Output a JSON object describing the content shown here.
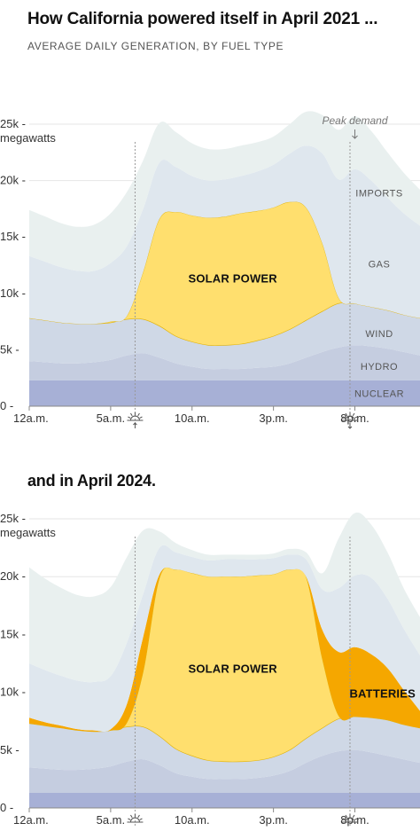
{
  "title_1": "How California powered itself in April 2021 ...",
  "subtitle": "AVERAGE DAILY GENERATION, BY FUEL TYPE",
  "title_2": "and in April 2024.",
  "colors": {
    "nuclear": "#a7b0d6",
    "hydro": "#c5cde0",
    "wind": "#cfd8e6",
    "solar": "#ffdf6e",
    "batteries": "#f5a700",
    "gas": "#dfe7ee",
    "imports": "#e9f0ef"
  },
  "chart_data": [
    {
      "type": "area",
      "stacked": true,
      "title": "How California powered itself in April 2021 ...",
      "subtitle": "AVERAGE DAILY GENERATION, BY FUEL TYPE",
      "ylabel": "megawatts",
      "ylim": [
        0,
        25000
      ],
      "y_ticks": [
        "0",
        "5k",
        "10k",
        "15k",
        "20k",
        "25k"
      ],
      "y_tick_values": [
        0,
        5000,
        10000,
        15000,
        20000,
        25000
      ],
      "x_ticks": [
        "12a.m.",
        "5a.m.",
        "10a.m.",
        "3p.m.",
        "8p.m."
      ],
      "x_tick_hours": [
        0,
        5,
        10,
        15,
        20
      ],
      "sunrise_hour": 6.5,
      "sunset_hour": 19.7,
      "peak_demand_label": "Peak demand",
      "peak_demand_hour": 20,
      "x": [
        0,
        1,
        2,
        3,
        4,
        5,
        6,
        7,
        8,
        9,
        10,
        11,
        12,
        13,
        14,
        15,
        16,
        17,
        18,
        19,
        20,
        21,
        22,
        23,
        24
      ],
      "series": [
        {
          "name": "NUCLEAR",
          "key": "nuclear",
          "values": [
            2300,
            2300,
            2300,
            2300,
            2300,
            2300,
            2300,
            2300,
            2300,
            2300,
            2300,
            2300,
            2300,
            2300,
            2300,
            2300,
            2300,
            2300,
            2300,
            2300,
            2300,
            2300,
            2300,
            2300,
            2300
          ]
        },
        {
          "name": "HYDRO",
          "key": "hydro",
          "values": [
            1700,
            1600,
            1500,
            1500,
            1600,
            1800,
            2200,
            2400,
            2000,
            1500,
            1200,
            1000,
            1000,
            1000,
            1100,
            1200,
            1500,
            2000,
            2500,
            2900,
            3100,
            3000,
            2800,
            2500,
            2200
          ]
        },
        {
          "name": "WIND",
          "key": "wind",
          "values": [
            3800,
            3700,
            3600,
            3500,
            3400,
            3300,
            3200,
            3000,
            2800,
            2400,
            2200,
            2100,
            2100,
            2200,
            2400,
            2700,
            3000,
            3300,
            3600,
            3900,
            3700,
            3500,
            3400,
            3300,
            3300
          ]
        },
        {
          "name": "SOLAR POWER",
          "key": "solar",
          "values": [
            0,
            0,
            0,
            0,
            0,
            100,
            300,
            4200,
            9500,
            11000,
            11200,
            11300,
            11400,
            11600,
            11500,
            11400,
            11300,
            10000,
            6000,
            500,
            0,
            0,
            0,
            0,
            0
          ]
        },
        {
          "name": "GAS",
          "key": "gas",
          "values": [
            5500,
            5200,
            4900,
            4700,
            4700,
            5200,
            6200,
            5600,
            5000,
            4000,
            3500,
            3300,
            3300,
            3300,
            3500,
            3800,
            4300,
            5500,
            8000,
            10500,
            11900,
            11200,
            10000,
            9000,
            8200
          ]
        },
        {
          "name": "IMPORTS",
          "key": "imports",
          "values": [
            4100,
            4000,
            3900,
            3900,
            4100,
            4400,
            4800,
            4300,
            3500,
            3100,
            2900,
            2800,
            2700,
            2700,
            2600,
            2500,
            2600,
            3000,
            3400,
            4400,
            4700,
            4400,
            4000,
            3600,
            3200
          ]
        }
      ],
      "labels": [
        {
          "text": "SOLAR POWER",
          "key": "solar"
        },
        {
          "text": "IMPORTS",
          "key": "imports"
        },
        {
          "text": "GAS",
          "key": "gas"
        },
        {
          "text": "WIND",
          "key": "wind"
        },
        {
          "text": "HYDRO",
          "key": "hydro"
        },
        {
          "text": "NUCLEAR",
          "key": "nuclear"
        }
      ]
    },
    {
      "type": "area",
      "stacked": true,
      "title": "and in April 2024.",
      "ylabel": "megawatts",
      "ylim": [
        0,
        25000
      ],
      "y_ticks": [
        "0",
        "5k",
        "10k",
        "15k",
        "20k",
        "25k"
      ],
      "y_tick_values": [
        0,
        5000,
        10000,
        15000,
        20000,
        25000
      ],
      "x_ticks": [
        "12a.m.",
        "5a.m.",
        "10a.m.",
        "3p.m.",
        "8p.m."
      ],
      "x_tick_hours": [
        0,
        5,
        10,
        15,
        20
      ],
      "sunrise_hour": 6.5,
      "sunset_hour": 19.7,
      "x": [
        0,
        1,
        2,
        3,
        4,
        5,
        6,
        7,
        8,
        9,
        10,
        11,
        12,
        13,
        14,
        15,
        16,
        17,
        18,
        19,
        20,
        21,
        22,
        23,
        24
      ],
      "series": [
        {
          "name": "NUCLEAR",
          "key": "nuclear",
          "values": [
            1300,
            1300,
            1300,
            1300,
            1300,
            1300,
            1300,
            1300,
            1300,
            1300,
            1300,
            1300,
            1300,
            1300,
            1300,
            1300,
            1300,
            1300,
            1300,
            1300,
            1300,
            1300,
            1300,
            1300,
            1300
          ]
        },
        {
          "name": "HYDRO",
          "key": "hydro",
          "values": [
            2200,
            2100,
            2000,
            2000,
            2100,
            2300,
            2700,
            2900,
            2400,
            1700,
            1400,
            1200,
            1200,
            1200,
            1300,
            1500,
            1900,
            2600,
            3200,
            3600,
            3700,
            3500,
            3200,
            2900,
            2600
          ]
        },
        {
          "name": "WIND",
          "key": "wind",
          "values": [
            3800,
            3700,
            3600,
            3400,
            3200,
            3100,
            3000,
            2800,
            2500,
            2100,
            1800,
            1600,
            1500,
            1500,
            1500,
            1600,
            1800,
            2100,
            2400,
            2800,
            2900,
            3000,
            3100,
            3000,
            3000
          ]
        },
        {
          "name": "SOLAR POWER",
          "key": "solar",
          "values": [
            0,
            0,
            0,
            0,
            0,
            0,
            400,
            4800,
            13700,
            15500,
            15800,
            15900,
            16000,
            16000,
            16000,
            15800,
            15600,
            14000,
            6000,
            300,
            0,
            0,
            0,
            0,
            0
          ]
        },
        {
          "name": "BATTERIES",
          "key": "batteries",
          "values": [
            500,
            300,
            200,
            100,
            100,
            100,
            1600,
            3000,
            300,
            0,
            0,
            0,
            0,
            0,
            0,
            0,
            0,
            0,
            2500,
            5500,
            6000,
            5500,
            4500,
            3000,
            1500
          ]
        },
        {
          "name": "GAS",
          "key": "gas",
          "values": [
            4700,
            4500,
            4300,
            4200,
            4200,
            4600,
            5300,
            3700,
            2300,
            1500,
            1400,
            1400,
            1500,
            1500,
            1400,
            1400,
            1300,
            1500,
            3500,
            5500,
            6200,
            6600,
            6000,
            5300,
            4800
          ]
        },
        {
          "name": "IMPORTS",
          "key": "imports",
          "values": [
            8300,
            7900,
            7600,
            7400,
            7400,
            7700,
            7400,
            5500,
            1400,
            800,
            600,
            500,
            400,
            400,
            400,
            400,
            500,
            600,
            1400,
            4300,
            5400,
            4600,
            4000,
            3500,
            3300
          ]
        }
      ],
      "labels": [
        {
          "text": "SOLAR POWER",
          "key": "solar"
        },
        {
          "text": "BATTERIES",
          "key": "batteries"
        }
      ]
    }
  ]
}
